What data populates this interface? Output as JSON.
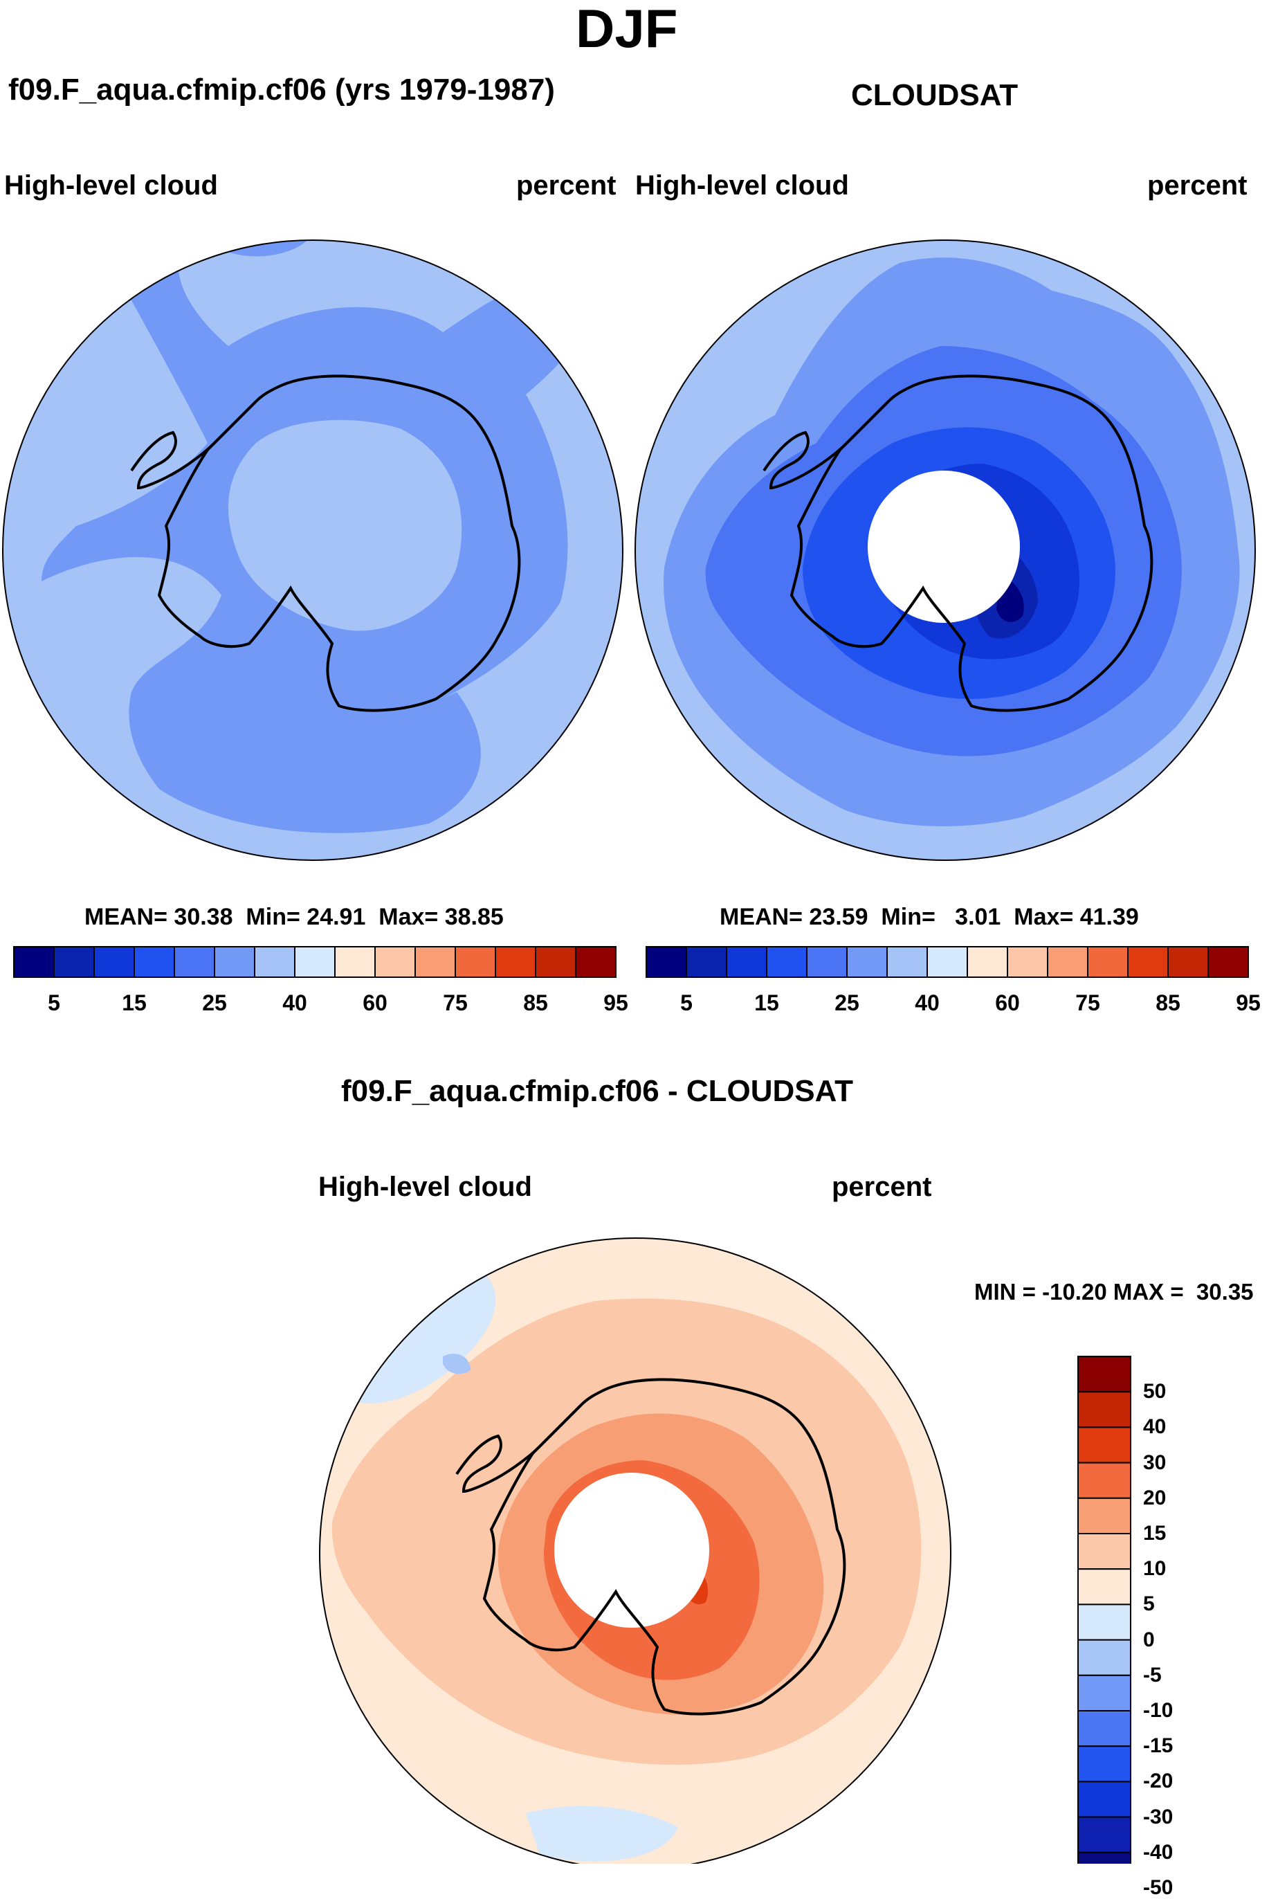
{
  "figure_title": "DJF",
  "colors": {
    "abs": [
      "#00007f",
      "#0a24b0",
      "#1038d8",
      "#2052f0",
      "#4a74f4",
      "#7399f6",
      "#a6c3f8",
      "#d6e8fb",
      "#fde8d5",
      "#fbc7a8",
      "#f89d74",
      "#f2683d",
      "#e03b10",
      "#c32605",
      "#900000"
    ],
    "diff": [
      "#0a0a80",
      "#0d20b0",
      "#1038d8",
      "#2254f0",
      "#4a76f4",
      "#7399f6",
      "#a8c5f8",
      "#d6e8fb",
      "#fde9d6",
      "#fbc8a9",
      "#f89e75",
      "#f26a3e",
      "#e03c10",
      "#c42606",
      "#8a0000"
    ]
  },
  "panel_left": {
    "case": "f09.F_aqua.cfmip.cf06 (yrs 1979-1987)",
    "variable": "High-level cloud",
    "units": "percent",
    "stats": {
      "mean_label": "MEAN=",
      "mean": "30.38",
      "min_label": "Min=",
      "min": "24.91",
      "max_label": "Max=",
      "max": "38.85"
    },
    "colorbar_labels": [
      "5",
      "15",
      "25",
      "40",
      "60",
      "75",
      "85",
      "95"
    ]
  },
  "panel_right": {
    "case": "CLOUDSAT",
    "variable": "High-level cloud",
    "units": "percent",
    "stats": {
      "mean_label": "MEAN=",
      "mean": "23.59",
      "min_label": "Min=",
      "min": "3.01",
      "max_label": "Max=",
      "max": "41.39"
    },
    "colorbar_labels": [
      "5",
      "15",
      "25",
      "40",
      "60",
      "75",
      "85",
      "95"
    ]
  },
  "panel_diff": {
    "title": "f09.F_aqua.cfmip.cf06 - CLOUDSAT",
    "variable": "High-level cloud",
    "units": "percent",
    "minmax": "MIN = -10.20 MAX =  30.35",
    "colorbar_labels": [
      "50",
      "40",
      "30",
      "20",
      "15",
      "10",
      "5",
      "0",
      "-5",
      "-10",
      "-15",
      "-20",
      "-30",
      "-40",
      "-50"
    ]
  }
}
